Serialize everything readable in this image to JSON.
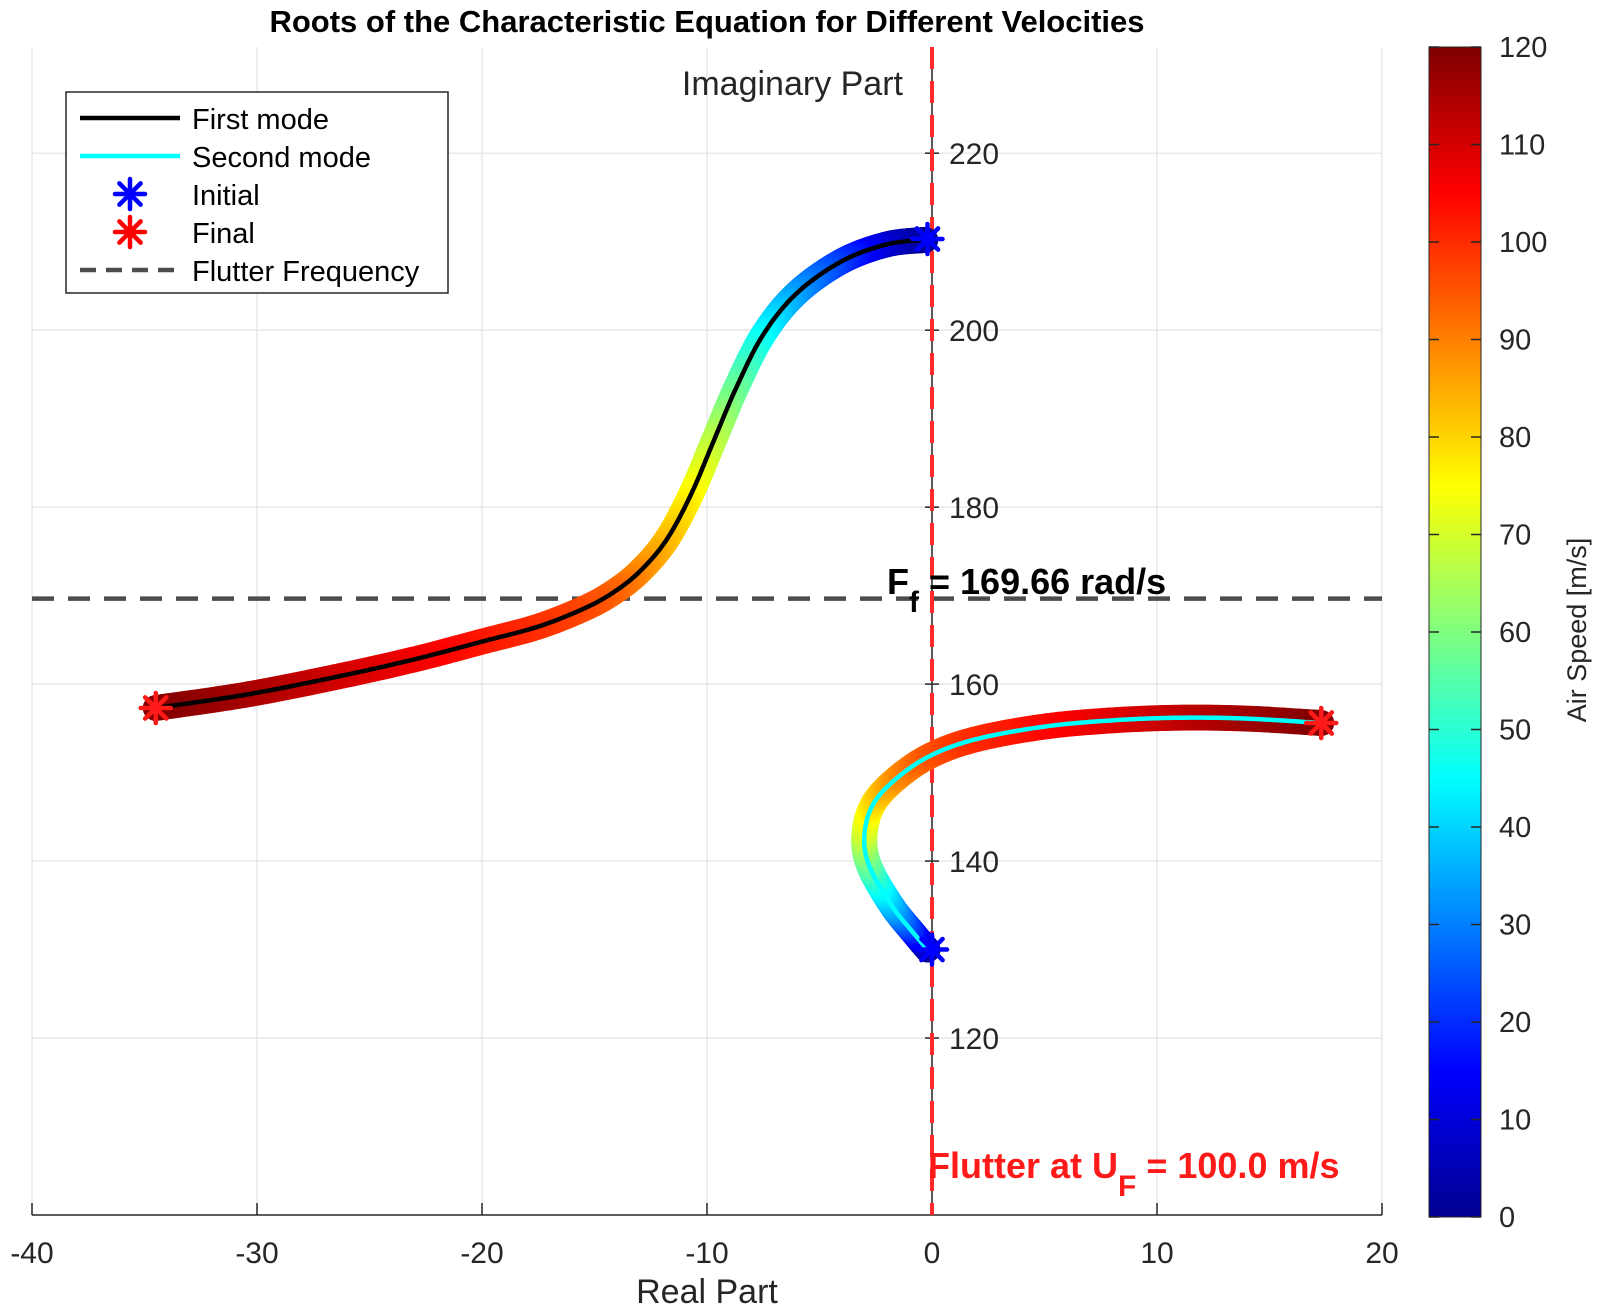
{
  "chart_data": {
    "type": "scatter",
    "title": "Roots of the Characteristic Equation for Different Velocities",
    "xlabel": "Real Part",
    "ylabel": "Imaginary Part",
    "xlim": [
      -40,
      20
    ],
    "ylim": [
      100,
      232
    ],
    "x_ticks": [
      -40,
      -30,
      -20,
      -10,
      0,
      10,
      20
    ],
    "y_ticks": [
      120,
      140,
      160,
      180,
      200,
      220
    ],
    "grid": true,
    "legend_position": "top-left",
    "legend": [
      {
        "label": "First mode",
        "kind": "line",
        "color": "#000000"
      },
      {
        "label": "Second mode",
        "kind": "line",
        "color": "#00ffff"
      },
      {
        "label": "Initial",
        "kind": "marker",
        "color": "#0000ff"
      },
      {
        "label": "Final",
        "kind": "marker",
        "color": "#ff0000"
      },
      {
        "label": "Flutter Frequency",
        "kind": "dashed",
        "color": "#4d4d4d"
      }
    ],
    "colorbar": {
      "label": "Air Speed [m/s]",
      "range": [
        0,
        120
      ],
      "ticks": [
        0,
        10,
        20,
        30,
        40,
        50,
        60,
        70,
        80,
        90,
        100,
        110,
        120
      ],
      "colormap": "jet"
    },
    "series": [
      {
        "name": "First mode",
        "color": "#000000",
        "x": [
          -0.3,
          -2,
          -4,
          -6,
          -7.5,
          -8.7,
          -9.7,
          -10.7,
          -11.8,
          -13,
          -14.2,
          -15.5,
          -17.5,
          -20,
          -23,
          -26.5,
          -30.5,
          -34.5
        ],
        "y": [
          210.2,
          209.7,
          207.8,
          204.2,
          199.5,
          193.5,
          187.5,
          181.5,
          176.3,
          172.7,
          170.3,
          168.5,
          166.5,
          164.8,
          162.8,
          160.8,
          158.8,
          157.3
        ],
        "speed": [
          0,
          8,
          20,
          32,
          44,
          56,
          66,
          75,
          82,
          88,
          93,
          96,
          99,
          102,
          106,
          110,
          115,
          120
        ]
      },
      {
        "name": "Second mode",
        "color": "#00ffff",
        "x": [
          -0.2,
          -0.8,
          -1.8,
          -2.8,
          -3,
          -2.6,
          -1.5,
          0,
          2,
          5,
          8,
          11,
          14,
          17.3
        ],
        "y": [
          130,
          131.8,
          135,
          139.5,
          143,
          146.5,
          149.5,
          152,
          153.8,
          155.2,
          155.9,
          156.2,
          156.1,
          155.6
        ],
        "speed": [
          0,
          15,
          35,
          55,
          68,
          78,
          88,
          95,
          100,
          104,
          108,
          112,
          116,
          120
        ]
      }
    ],
    "initial_points": [
      {
        "x": -0.2,
        "y": 210.3
      },
      {
        "x": 0,
        "y": 130
      }
    ],
    "final_points": [
      {
        "x": -34.5,
        "y": 157.3
      },
      {
        "x": 17.3,
        "y": 155.6
      }
    ],
    "flutter_frequency": 169.66,
    "flutter_speed": 100.0,
    "flutter_real": 0,
    "annotations": {
      "frequency_main": "F",
      "frequency_sub": "f",
      "frequency_rest": " = 169.66 rad/s",
      "flutter_main": "Flutter at U",
      "flutter_sub": "F",
      "flutter_rest": " = 100.0 m/s"
    }
  }
}
